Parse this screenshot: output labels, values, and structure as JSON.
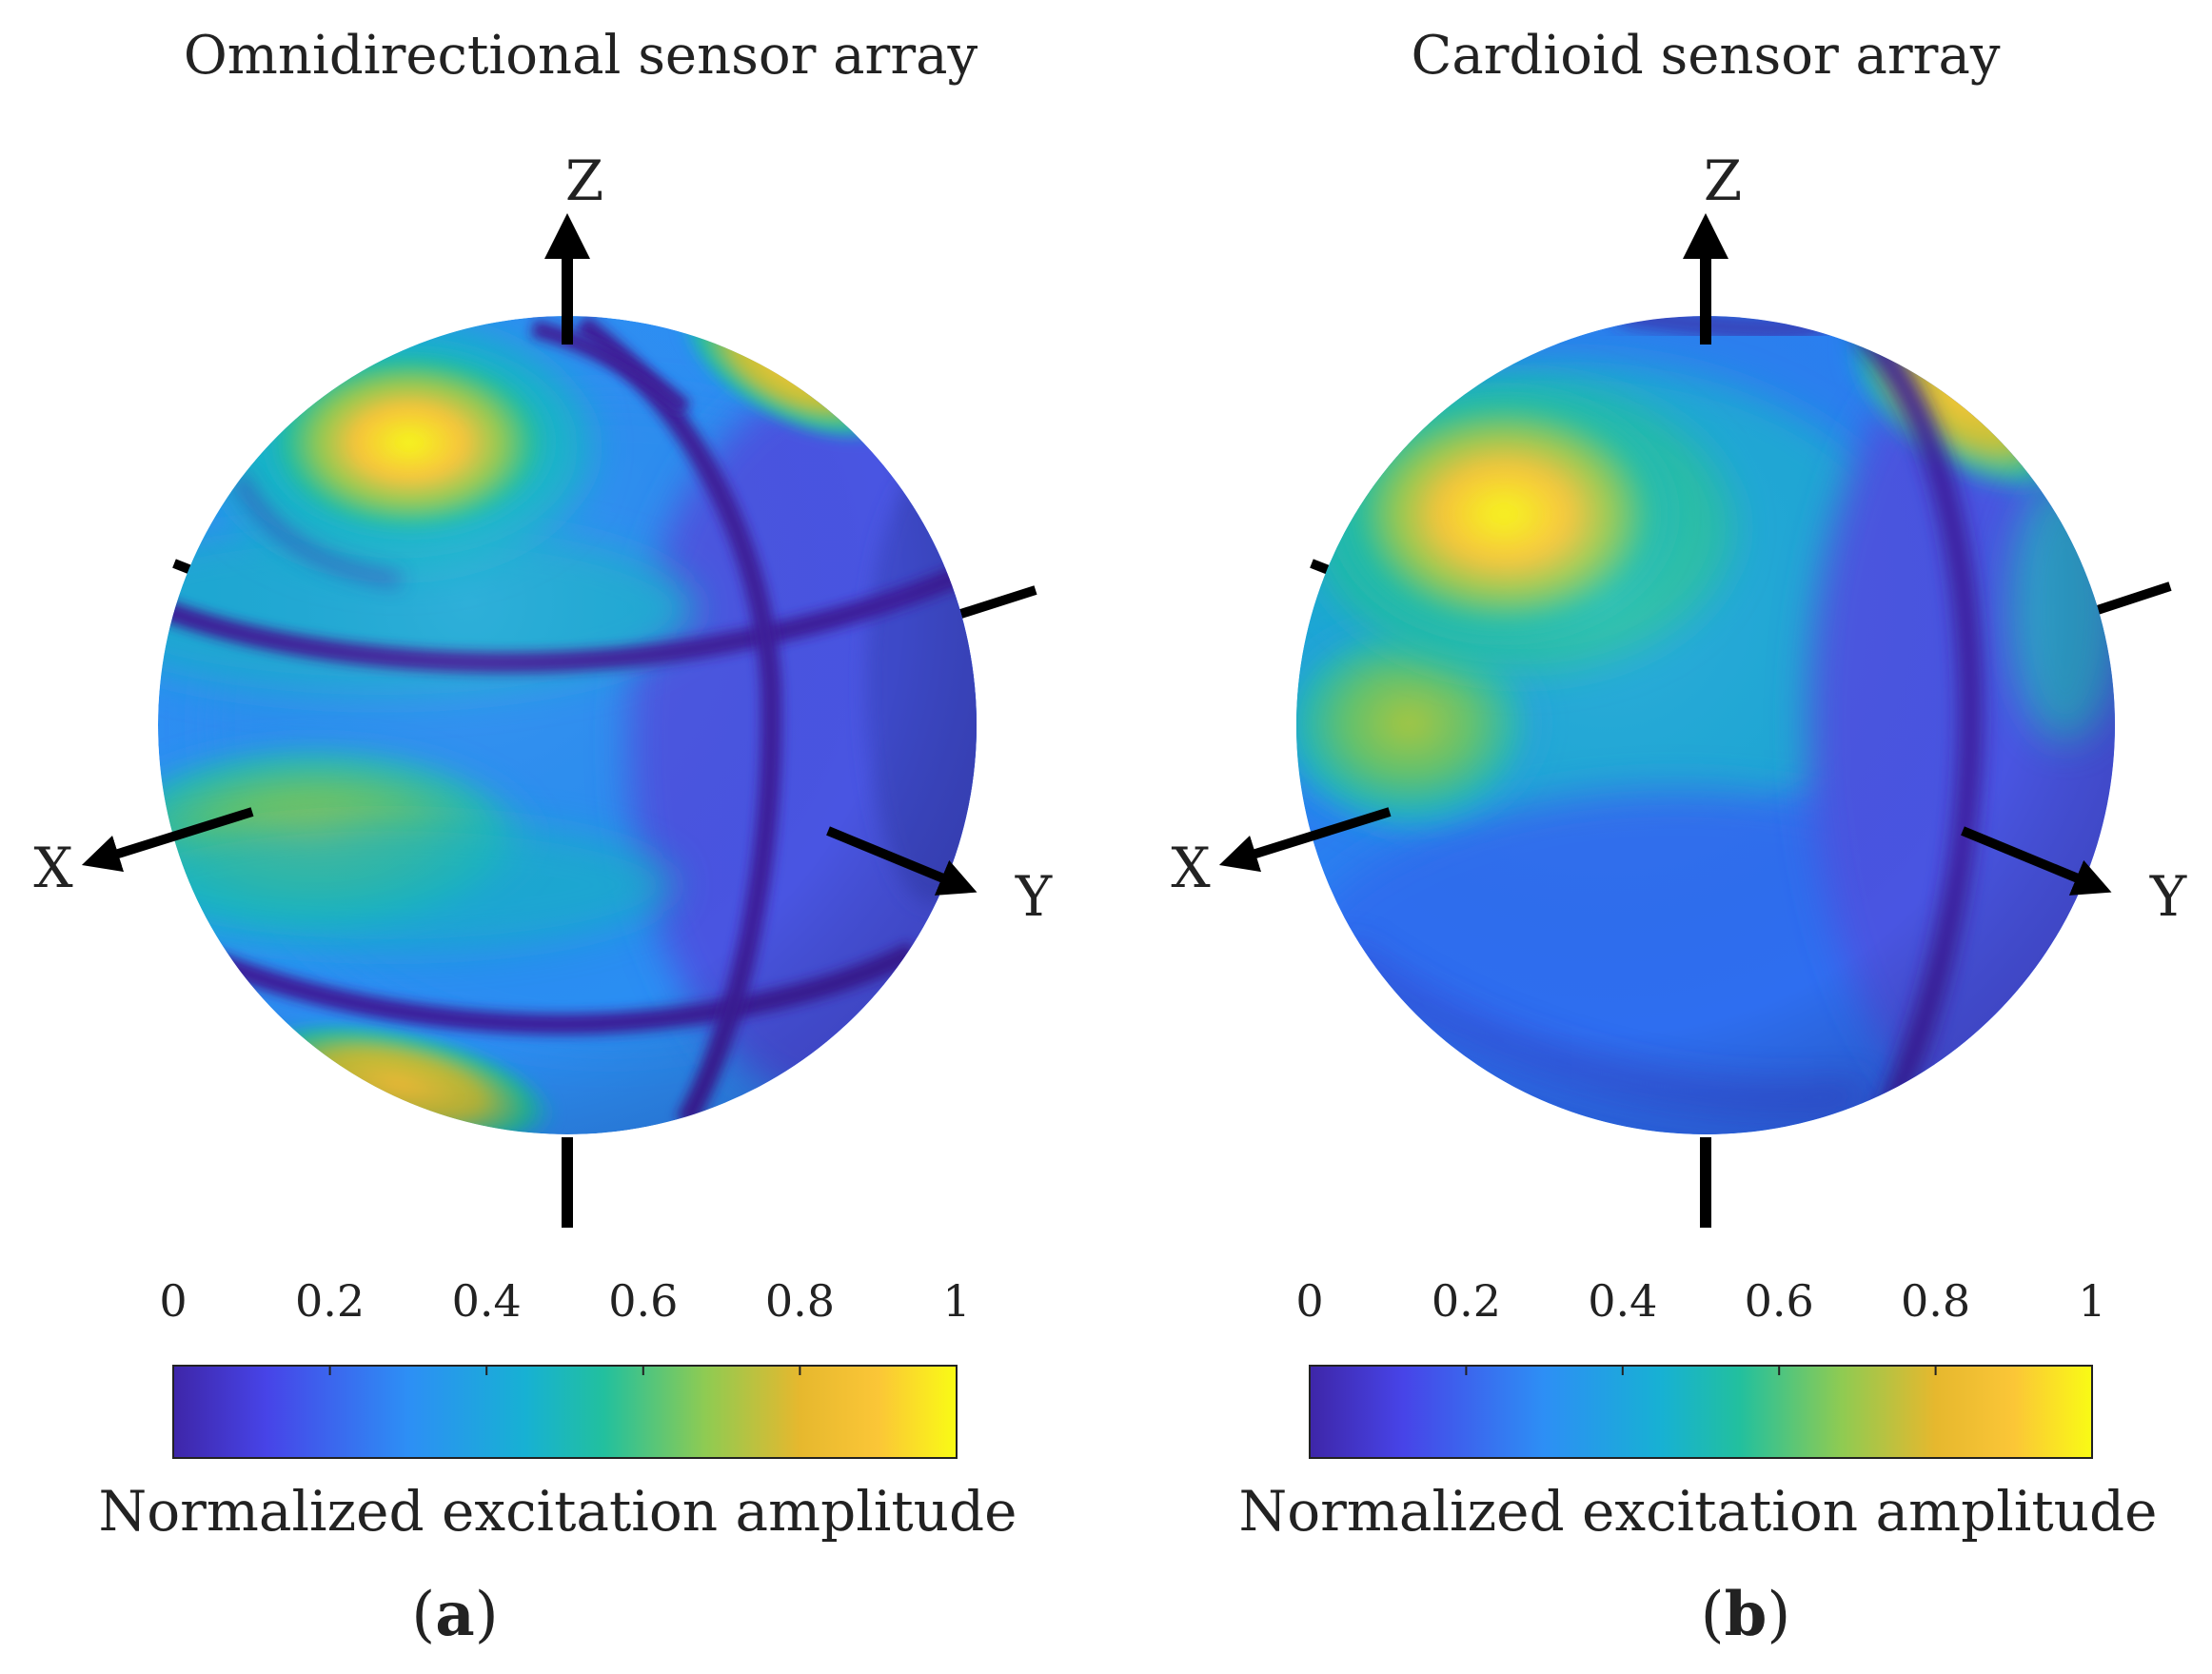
{
  "figure": {
    "panels": [
      {
        "id": "a",
        "label": "a",
        "title": "Omnidirectional sensor array",
        "axes": {
          "x": "X",
          "y": "Y",
          "z": "Z"
        },
        "colorbar": {
          "ticks": [
            "0",
            "0.2",
            "0.4",
            "0.6",
            "0.8",
            "1"
          ],
          "label": "Normalized excitation amplitude"
        }
      },
      {
        "id": "b",
        "label": "b",
        "title": "Cardioid sensor array",
        "axes": {
          "x": "X",
          "y": "Y",
          "z": "Z"
        },
        "colorbar": {
          "ticks": [
            "0",
            "0.2",
            "0.4",
            "0.6",
            "0.8",
            "1"
          ],
          "label": "Normalized excitation amplitude"
        }
      }
    ]
  },
  "chart_data": [
    {
      "type": "heatmap",
      "title": "Omnidirectional sensor array",
      "panel": "a",
      "surface": "sphere",
      "colormap": "parula",
      "colormap_stops": [
        "#3e26a8",
        "#4744e8",
        "#2d8ff5",
        "#17b1d3",
        "#22c09e",
        "#8fcb52",
        "#e6b82e",
        "#fbc637",
        "#f9fb15"
      ],
      "clim": [
        0,
        1
      ],
      "colorbar_ticks": [
        0,
        0.2,
        0.4,
        0.6,
        0.8,
        1
      ],
      "colorbar_label": "Normalized excitation amplitude",
      "axes_labels": [
        "X",
        "Y",
        "Z"
      ],
      "features": [
        {
          "region": "upper-left (above X axis, toward +Z)",
          "value": 1.0
        },
        {
          "region": "X-axis direction, equator",
          "value": 0.65
        },
        {
          "region": "bottom-left near -Z",
          "value": 0.9
        },
        {
          "region": "top-right rim",
          "value": 0.85
        },
        {
          "region": "two horizontal latitude bands",
          "value": 0.0
        },
        {
          "region": "meridian band near Y axis",
          "value": 0.0
        },
        {
          "region": "sphere center",
          "value": 0.4
        }
      ]
    },
    {
      "type": "heatmap",
      "title": "Cardioid sensor array",
      "panel": "b",
      "surface": "sphere",
      "colormap": "parula",
      "colormap_stops": [
        "#3e26a8",
        "#4744e8",
        "#2d8ff5",
        "#17b1d3",
        "#22c09e",
        "#8fcb52",
        "#e6b82e",
        "#fbc637",
        "#f9fb15"
      ],
      "clim": [
        0,
        1
      ],
      "colorbar_ticks": [
        0,
        0.2,
        0.4,
        0.6,
        0.8,
        1
      ],
      "colorbar_label": "Normalized excitation amplitude",
      "axes_labels": [
        "X",
        "Y",
        "Z"
      ],
      "features": [
        {
          "region": "upper-left (above X axis, toward +Z)",
          "value": 1.0
        },
        {
          "region": "left side below peak",
          "value": 0.6
        },
        {
          "region": "top-right rim",
          "value": 0.8
        },
        {
          "region": "meridian band near Y axis",
          "value": 0.0
        },
        {
          "region": "lower hemisphere",
          "value": 0.2
        },
        {
          "region": "sphere center",
          "value": 0.3
        }
      ]
    }
  ]
}
